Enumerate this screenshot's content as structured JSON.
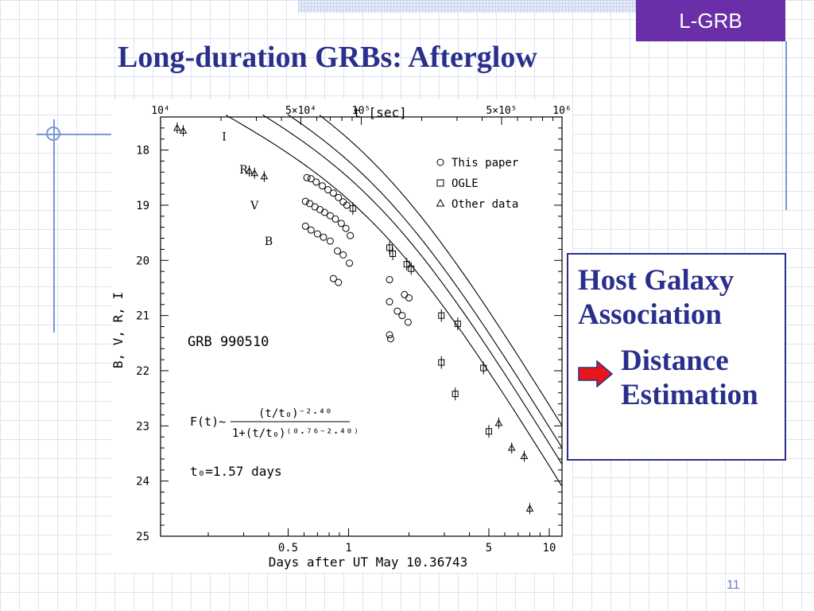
{
  "slide": {
    "tag": "L-GRB",
    "title": "Long-duration GRBs: Afterglow",
    "page_number": "11",
    "accent_color": "#6a2fa8",
    "title_color": "#2a2f8c",
    "callout": {
      "line1": "Host Galaxy Association",
      "arrow_icon": "red-right-arrow-icon",
      "line2": "Distance Estimation"
    }
  },
  "chart_data": {
    "type": "scatter",
    "title": "",
    "xlabel": "Days after UT May 10.36743",
    "x2label": "t [sec]",
    "ylabel": "B, V, R, I",
    "xscale": "log",
    "xlim": [
      0.1157,
      11.574
    ],
    "ylim": [
      25,
      17.4
    ],
    "y_inverted": true,
    "x_ticks_bottom": [
      {
        "value": 0.5,
        "label": "0.5"
      },
      {
        "value": 1,
        "label": "1"
      },
      {
        "value": 5,
        "label": "5"
      },
      {
        "value": 10,
        "label": "10"
      }
    ],
    "x_ticks_top": [
      {
        "value": 0.11574,
        "label": "10⁴"
      },
      {
        "value": 0.5787,
        "label": "5×10⁴"
      },
      {
        "value": 1.1574,
        "label": "10⁵"
      },
      {
        "value": 5.787,
        "label": "5×10⁵"
      },
      {
        "value": 11.574,
        "label": "10⁶"
      }
    ],
    "y_ticks": [
      18,
      19,
      20,
      21,
      22,
      23,
      24,
      25
    ],
    "annotations": {
      "object": "GRB 990510",
      "formula_lhs": "F(t)~",
      "formula_num": "(t/t₀)⁻²·⁴⁰",
      "formula_den": "1+(t/t₀)⁽⁰·⁷⁶⁻²·⁴⁰⁾",
      "t0": "t₀=1.57 days"
    },
    "legend": {
      "placement": "top-right",
      "entries": [
        {
          "marker": "circle",
          "label": "This paper"
        },
        {
          "marker": "square",
          "label": "OGLE"
        },
        {
          "marker": "triangle",
          "label": "Other data"
        }
      ]
    },
    "model": {
      "t0_days": 1.57,
      "alpha1": 0.76,
      "alpha2": 2.4
    },
    "series": [
      {
        "name": "I",
        "offset": 17.75,
        "label_at": [
          0.24,
          17.75
        ],
        "points": [
          {
            "x": 0.62,
            "y": 18.5,
            "m": "circle"
          },
          {
            "x": 0.65,
            "y": 18.52,
            "m": "circle"
          },
          {
            "x": 0.69,
            "y": 18.58,
            "m": "circle"
          },
          {
            "x": 0.74,
            "y": 18.65,
            "m": "circle"
          },
          {
            "x": 0.79,
            "y": 18.72,
            "m": "circle"
          },
          {
            "x": 0.84,
            "y": 18.78,
            "m": "circle"
          },
          {
            "x": 0.89,
            "y": 18.86,
            "m": "circle"
          },
          {
            "x": 0.94,
            "y": 18.94,
            "m": "circle"
          },
          {
            "x": 0.98,
            "y": 19.0,
            "m": "circle"
          },
          {
            "x": 1.05,
            "y": 19.06,
            "m": "square"
          },
          {
            "x": 1.6,
            "y": 19.77,
            "m": "square"
          },
          {
            "x": 1.66,
            "y": 19.88,
            "m": "square"
          },
          {
            "x": 1.95,
            "y": 20.07,
            "m": "square"
          },
          {
            "x": 2.05,
            "y": 20.15,
            "m": "square"
          },
          {
            "x": 2.9,
            "y": 21.0,
            "m": "square"
          },
          {
            "x": 3.5,
            "y": 21.15,
            "m": "square"
          },
          {
            "x": 4.7,
            "y": 21.95,
            "m": "square"
          },
          {
            "x": 7.5,
            "y": 23.55,
            "m": "triangle"
          }
        ]
      },
      {
        "name": "R",
        "offset": 18.15,
        "label_at": [
          0.3,
          18.35
        ],
        "points": [
          {
            "x": 0.32,
            "y": 18.38,
            "m": "triangle"
          },
          {
            "x": 0.34,
            "y": 18.42,
            "m": "triangle"
          },
          {
            "x": 0.38,
            "y": 18.48,
            "m": "triangle"
          },
          {
            "x": 0.61,
            "y": 18.93,
            "m": "circle"
          },
          {
            "x": 0.64,
            "y": 18.97,
            "m": "circle"
          },
          {
            "x": 0.68,
            "y": 19.03,
            "m": "circle"
          },
          {
            "x": 0.72,
            "y": 19.08,
            "m": "circle"
          },
          {
            "x": 0.76,
            "y": 19.13,
            "m": "circle"
          },
          {
            "x": 0.81,
            "y": 19.19,
            "m": "circle"
          },
          {
            "x": 0.86,
            "y": 19.25,
            "m": "circle"
          },
          {
            "x": 0.92,
            "y": 19.33,
            "m": "circle"
          },
          {
            "x": 0.97,
            "y": 19.42,
            "m": "circle"
          },
          {
            "x": 1.02,
            "y": 19.55,
            "m": "circle"
          },
          {
            "x": 1.6,
            "y": 20.35,
            "m": "circle"
          },
          {
            "x": 1.9,
            "y": 20.62,
            "m": "circle"
          },
          {
            "x": 2.0,
            "y": 20.68,
            "m": "circle"
          },
          {
            "x": 2.9,
            "y": 21.85,
            "m": "square"
          },
          {
            "x": 3.4,
            "y": 22.42,
            "m": "square"
          },
          {
            "x": 5.6,
            "y": 22.95,
            "m": "triangle"
          },
          {
            "x": 6.5,
            "y": 23.4,
            "m": "triangle"
          }
        ]
      },
      {
        "name": "V",
        "offset": 18.45,
        "label_at": [
          0.34,
          19.0
        ],
        "points": [
          {
            "x": 0.14,
            "y": 17.6,
            "m": "triangle"
          },
          {
            "x": 0.15,
            "y": 17.65,
            "m": "triangle"
          },
          {
            "x": 0.61,
            "y": 19.38,
            "m": "circle"
          },
          {
            "x": 0.65,
            "y": 19.45,
            "m": "circle"
          },
          {
            "x": 0.7,
            "y": 19.52,
            "m": "circle"
          },
          {
            "x": 0.75,
            "y": 19.58,
            "m": "circle"
          },
          {
            "x": 0.81,
            "y": 19.65,
            "m": "circle"
          },
          {
            "x": 0.88,
            "y": 19.83,
            "m": "circle"
          },
          {
            "x": 0.94,
            "y": 19.9,
            "m": "circle"
          },
          {
            "x": 1.01,
            "y": 20.05,
            "m": "circle"
          },
          {
            "x": 1.6,
            "y": 20.75,
            "m": "circle"
          },
          {
            "x": 1.75,
            "y": 20.92,
            "m": "circle"
          },
          {
            "x": 1.85,
            "y": 21.0,
            "m": "circle"
          },
          {
            "x": 1.98,
            "y": 21.12,
            "m": "circle"
          },
          {
            "x": 5.0,
            "y": 23.1,
            "m": "square"
          },
          {
            "x": 8.0,
            "y": 24.5,
            "m": "triangle"
          }
        ]
      },
      {
        "name": "B",
        "offset": 18.85,
        "label_at": [
          0.4,
          19.65
        ],
        "points": [
          {
            "x": 0.84,
            "y": 20.33,
            "m": "circle"
          },
          {
            "x": 0.89,
            "y": 20.4,
            "m": "circle"
          },
          {
            "x": 1.6,
            "y": 21.35,
            "m": "circle"
          },
          {
            "x": 1.62,
            "y": 21.42,
            "m": "circle"
          }
        ]
      }
    ]
  }
}
